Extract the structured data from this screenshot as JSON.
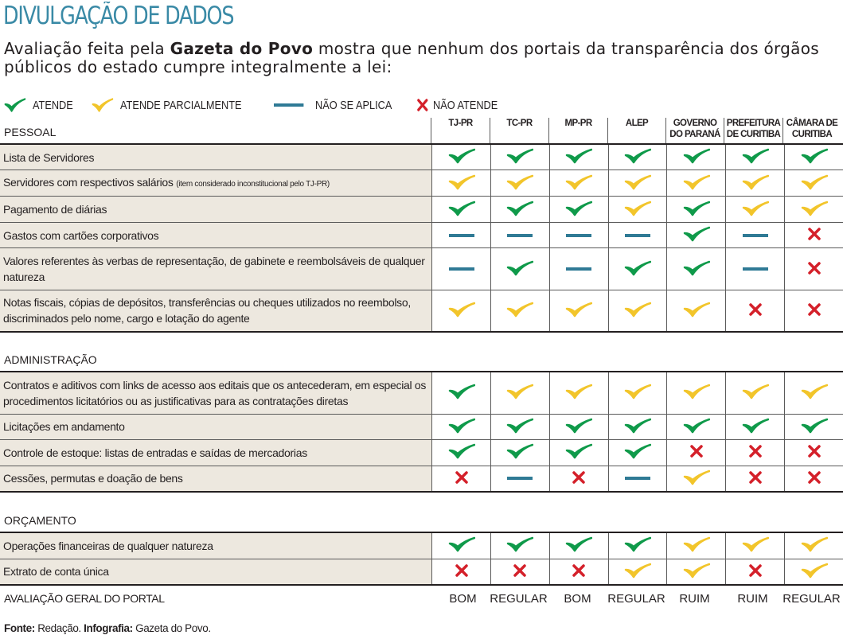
{
  "title": "DIVULGAÇÃO DE DADOS",
  "subtitle": {
    "before": "Avaliação feita pela ",
    "bold": "Gazeta do Povo",
    "after": " mostra que nenhum dos portais da transparência dos órgãos públicos do estado cumpre integralmente a lei:"
  },
  "legend": {
    "A": "ATENDE",
    "P": "ATENDE PARCIALMENTE",
    "N": "NÃO SE APLICA",
    "X": "NÃO ATENDE"
  },
  "colors": {
    "A": "#0f9a4a",
    "P": "#f2c52b",
    "N": "#2f7a95",
    "X": "#d4202a",
    "title": "#3a8aa6",
    "label_bg": "#ede8df"
  },
  "columns": [
    "TJ-PR",
    "TC-PR",
    "MP-PR",
    "ALEP",
    "GOVERNO DO PARANÁ",
    "PREFEITURA DE CURITIBA",
    "CÂMARA DE CURITIBA"
  ],
  "sections": [
    {
      "name": "PESSOAL",
      "rows": [
        {
          "label": "Lista de Servidores",
          "values": [
            "A",
            "A",
            "A",
            "A",
            "A",
            "A",
            "A"
          ]
        },
        {
          "label": "Servidores com respectivos salários",
          "note": "(item considerado inconstitucional pelo TJ-PR)",
          "values": [
            "P",
            "P",
            "P",
            "P",
            "P",
            "P",
            "P"
          ]
        },
        {
          "label": "Pagamento de diárias",
          "values": [
            "A",
            "A",
            "A",
            "P",
            "A",
            "P",
            "P"
          ]
        },
        {
          "label": "Gastos com cartões corporativos",
          "values": [
            "N",
            "N",
            "N",
            "N",
            "A",
            "N",
            "X"
          ]
        },
        {
          "label": "Valores referentes às verbas de representação, de gabinete e reembolsáveis de qualquer natureza",
          "values": [
            "N",
            "A",
            "N",
            "A",
            "A",
            "N",
            "X"
          ]
        },
        {
          "label": "Notas fiscais, cópias de depósitos, transferências ou cheques utilizados no reembolso, discriminados pelo nome, cargo e lotação do agente",
          "values": [
            "P",
            "P",
            "P",
            "P",
            "P",
            "X",
            "X"
          ]
        }
      ]
    },
    {
      "name": "ADMINISTRAÇÃO",
      "rows": [
        {
          "label": "Contratos e aditivos com links de acesso aos editais que os antecederam, em especial os procedimentos licitatórios ou as justificativas para as contratações diretas",
          "values": [
            "A",
            "P",
            "P",
            "P",
            "P",
            "P",
            "P"
          ]
        },
        {
          "label": "Licitações em andamento",
          "values": [
            "A",
            "A",
            "A",
            "A",
            "A",
            "A",
            "A"
          ]
        },
        {
          "label": "Controle de estoque: listas de entradas e saídas de mercadorias",
          "values": [
            "A",
            "A",
            "A",
            "A",
            "X",
            "X",
            "X"
          ]
        },
        {
          "label": "Cessões, permutas e doação de bens",
          "values": [
            "X",
            "N",
            "X",
            "N",
            "P",
            "X",
            "X"
          ]
        }
      ]
    },
    {
      "name": "ORÇAMENTO",
      "rows": [
        {
          "label": "Operações financeiras de qualquer natureza",
          "values": [
            "A",
            "A",
            "A",
            "A",
            "P",
            "P",
            "P"
          ]
        },
        {
          "label": "Extrato de conta única",
          "values": [
            "X",
            "X",
            "X",
            "P",
            "P",
            "X",
            "P"
          ]
        }
      ]
    }
  ],
  "overall": {
    "label": "AVALIAÇÃO GERAL DO PORTAL",
    "values": [
      "BOM",
      "REGULAR",
      "BOM",
      "REGULAR",
      "RUIM",
      "RUIM",
      "REGULAR"
    ]
  },
  "footer": {
    "fonte_label": "Fonte:",
    "fonte": " Redação. ",
    "infografia_label": "Infografia:",
    "infografia": " Gazeta do Povo."
  }
}
